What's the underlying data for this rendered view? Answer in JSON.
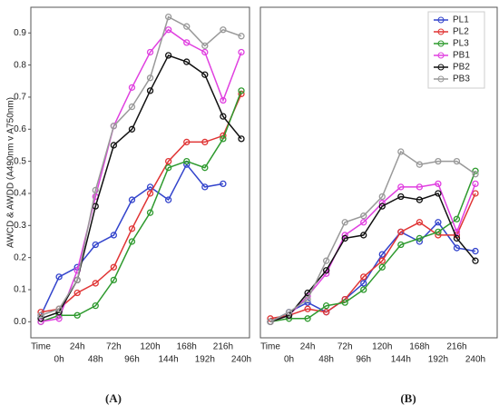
{
  "chart_data": [
    {
      "type": "line",
      "caption": "(A)",
      "y_label": "AWCD & AWDD (A490nm v A750nm)",
      "categories": [
        "Time",
        "0h",
        "24h",
        "48h",
        "72h",
        "96h",
        "120h",
        "144h",
        "168h",
        "192h",
        "216h",
        "240h"
      ],
      "ylim": [
        -0.05,
        0.98
      ],
      "yticks": [
        {
          "value": 0,
          "label": "0.0"
        },
        0.1,
        0.2,
        0.3,
        0.4,
        0.5,
        0.6,
        0.7,
        0.8,
        0.9
      ],
      "series": [
        {
          "name": "PL1",
          "color": "#3344cc",
          "values": [
            0.02,
            0.14,
            0.17,
            0.24,
            0.27,
            0.38,
            0.42,
            0.38,
            0.49,
            0.42,
            0.43,
            null
          ]
        },
        {
          "name": "PL2",
          "color": "#e03434",
          "values": [
            0.03,
            0.04,
            0.09,
            0.12,
            0.17,
            0.29,
            0.4,
            0.5,
            0.56,
            0.56,
            0.58,
            0.71
          ]
        },
        {
          "name": "PL3",
          "color": "#2e9a2e",
          "values": [
            0.0,
            0.02,
            0.02,
            0.05,
            0.13,
            0.25,
            0.34,
            0.48,
            0.5,
            0.48,
            0.57,
            0.72
          ]
        },
        {
          "name": "PB1",
          "color": "#e040e0",
          "values": [
            0.0,
            0.01,
            0.16,
            0.39,
            0.61,
            0.73,
            0.84,
            0.91,
            0.87,
            0.84,
            0.69,
            0.84
          ]
        },
        {
          "name": "PB2",
          "color": "#111111",
          "values": [
            0.01,
            0.03,
            0.13,
            0.36,
            0.55,
            0.6,
            0.72,
            0.83,
            0.81,
            0.77,
            0.64,
            0.57
          ]
        },
        {
          "name": "PB3",
          "color": "#999999",
          "values": [
            0.02,
            0.04,
            0.13,
            0.41,
            0.61,
            0.67,
            0.76,
            0.95,
            0.92,
            0.86,
            0.91,
            0.89
          ]
        }
      ]
    },
    {
      "type": "line",
      "caption": "(B)",
      "legend": "upper right",
      "categories": [
        "Time",
        "0h",
        "24h",
        "48h",
        "72h",
        "96h",
        "120h",
        "144h",
        "168h",
        "192h",
        "216h",
        "240h"
      ],
      "ylim": [
        -0.05,
        0.98
      ],
      "series": [
        {
          "name": "PL1",
          "color": "#3344cc",
          "values": [
            0.0,
            0.03,
            0.06,
            0.03,
            0.07,
            0.12,
            0.21,
            0.28,
            0.25,
            0.31,
            0.23,
            0.22
          ]
        },
        {
          "name": "PL2",
          "color": "#e03434",
          "values": [
            0.01,
            0.02,
            0.04,
            0.03,
            0.07,
            0.14,
            0.19,
            0.28,
            0.31,
            0.27,
            0.27,
            0.4
          ]
        },
        {
          "name": "PL3",
          "color": "#2e9a2e",
          "values": [
            0.0,
            0.01,
            0.01,
            0.05,
            0.06,
            0.1,
            0.17,
            0.24,
            0.26,
            0.28,
            0.32,
            0.47
          ]
        },
        {
          "name": "PB1",
          "color": "#e040e0",
          "values": [
            0.0,
            0.02,
            0.08,
            0.15,
            0.27,
            0.31,
            0.37,
            0.42,
            0.42,
            0.43,
            0.28,
            0.43
          ]
        },
        {
          "name": "PB2",
          "color": "#111111",
          "values": [
            0.0,
            0.02,
            0.09,
            0.16,
            0.26,
            0.27,
            0.36,
            0.39,
            0.38,
            0.4,
            0.26,
            0.19
          ]
        },
        {
          "name": "PB3",
          "color": "#999999",
          "values": [
            0.0,
            0.03,
            0.07,
            0.19,
            0.31,
            0.33,
            0.39,
            0.53,
            0.49,
            0.5,
            0.5,
            0.46
          ]
        }
      ]
    }
  ]
}
